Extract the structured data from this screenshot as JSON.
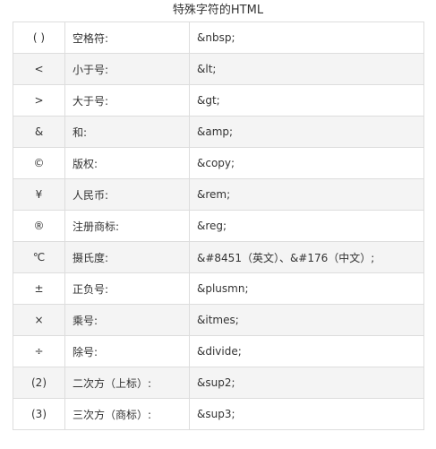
{
  "caption": "特殊字符的HTML",
  "rows": [
    {
      "symbol": "( )",
      "name": "空格符:",
      "code": "&nbsp;"
    },
    {
      "symbol": "<",
      "name": "小于号:",
      "code": " &lt;"
    },
    {
      "symbol": ">",
      "name": "大于号:",
      "code": "&gt;"
    },
    {
      "symbol": "&",
      "name": "和:",
      "code": "&amp;"
    },
    {
      "symbol": "©",
      "name": "版权:",
      "code": "&copy;"
    },
    {
      "symbol": "¥",
      "name": "人民币:",
      "code": "&rem;"
    },
    {
      "symbol": "®",
      "name": "注册商标:",
      "code": "&reg;"
    },
    {
      "symbol": "℃",
      "name": "摄氏度:",
      "code": "&#8451（英文）、&#176（中文）;"
    },
    {
      "symbol": "±",
      "name": "正负号:",
      "code": "&plusmn;"
    },
    {
      "symbol": "×",
      "name": "乘号:",
      "code": "&itmes;"
    },
    {
      "symbol": "÷",
      "name": "除号:",
      "code": "&divide;"
    },
    {
      "symbol": "(2)",
      "name": "二次方（上标）:",
      "code": "&sup2;"
    },
    {
      "symbol": "(3)",
      "name": "三次方（商标）:",
      "code": "&sup3;"
    }
  ]
}
